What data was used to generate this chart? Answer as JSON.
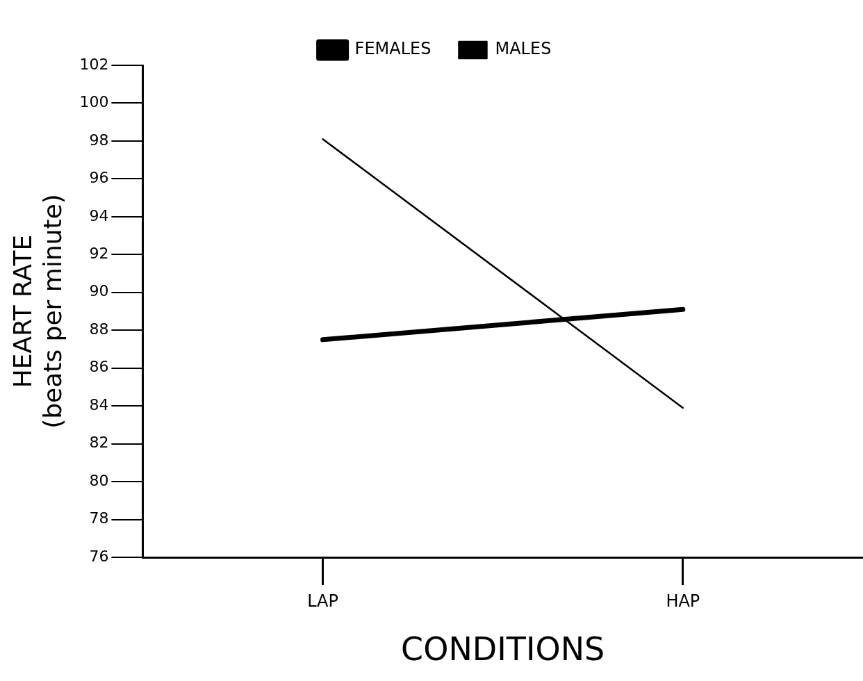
{
  "chart_data": {
    "type": "line",
    "xlabel": "CONDITIONS",
    "ylabel": "HEART RATE\n(beats per minute)",
    "categories": [
      "LAP",
      "HAP"
    ],
    "series": [
      {
        "name": "FEMALES",
        "color": "#000000",
        "values": [
          87.5,
          89.1
        ]
      },
      {
        "name": "MALES",
        "color": "#000000",
        "values": [
          98.1,
          83.9
        ]
      }
    ],
    "ylim": [
      76,
      102
    ],
    "yticks": [
      76,
      78,
      80,
      82,
      84,
      86,
      88,
      90,
      92,
      94,
      96,
      98,
      100,
      102
    ],
    "grid": false,
    "legend": "top",
    "marker": "none",
    "line_style": "solid"
  }
}
